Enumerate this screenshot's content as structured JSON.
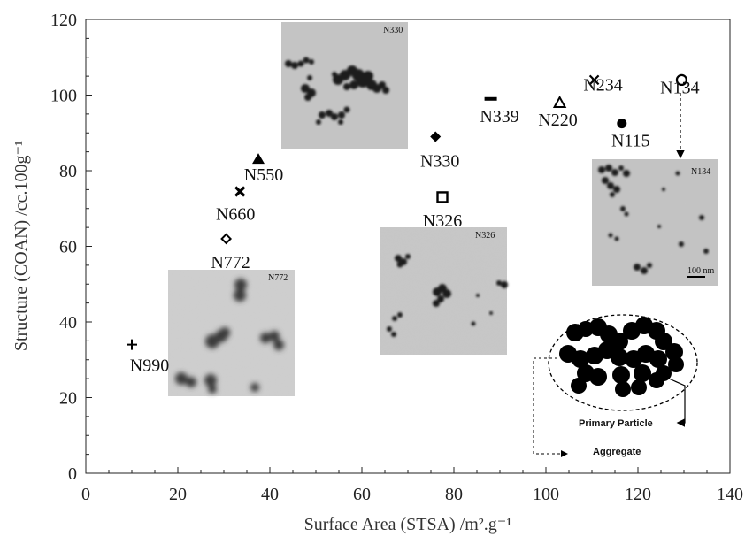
{
  "chart_data": {
    "type": "scatter",
    "title": "",
    "xlabel": "Surface Area (STSA) /m².g⁻¹",
    "ylabel": "Structure (COAN) /cc.100g⁻¹",
    "xlim": [
      0,
      140
    ],
    "ylim": [
      0,
      120
    ],
    "xticks": [
      "0",
      "20",
      "40",
      "60",
      "80",
      "100",
      "120",
      "140"
    ],
    "yticks": [
      "0",
      "20",
      "40",
      "60",
      "80",
      "100",
      "120"
    ],
    "grid": false,
    "legend": "none",
    "points": [
      {
        "label": "N990",
        "x": 10,
        "y": 34,
        "marker": "plus"
      },
      {
        "label": "N772",
        "x": 30.5,
        "y": 62,
        "marker": "diamond-open"
      },
      {
        "label": "N660",
        "x": 33.5,
        "y": 74.5,
        "marker": "x-bold"
      },
      {
        "label": "N550",
        "x": 37.5,
        "y": 83,
        "marker": "triangle-filled"
      },
      {
        "label": "N330",
        "x": 76,
        "y": 89,
        "marker": "diamond-filled"
      },
      {
        "label": "N326",
        "x": 77.5,
        "y": 73,
        "marker": "square-open"
      },
      {
        "label": "N339",
        "x": 88,
        "y": 99,
        "marker": "dash"
      },
      {
        "label": "N220",
        "x": 103,
        "y": 98,
        "marker": "triangle-open"
      },
      {
        "label": "N234",
        "x": 110.5,
        "y": 104,
        "marker": "x"
      },
      {
        "label": "N115",
        "x": 116.5,
        "y": 92.5,
        "marker": "circle-filled"
      },
      {
        "label": "N134",
        "x": 129.5,
        "y": 104,
        "marker": "circle-open"
      }
    ]
  },
  "insets": {
    "tem_n330": {
      "tag": "N330"
    },
    "tem_n326": {
      "tag": "N326"
    },
    "tem_n772": {
      "tag": "N772"
    },
    "tem_n134": {
      "tag": "N134",
      "scale_bar": "100 nm"
    }
  },
  "schematic": {
    "primary_particle": "Primary Particle",
    "aggregate": "Aggregate"
  }
}
